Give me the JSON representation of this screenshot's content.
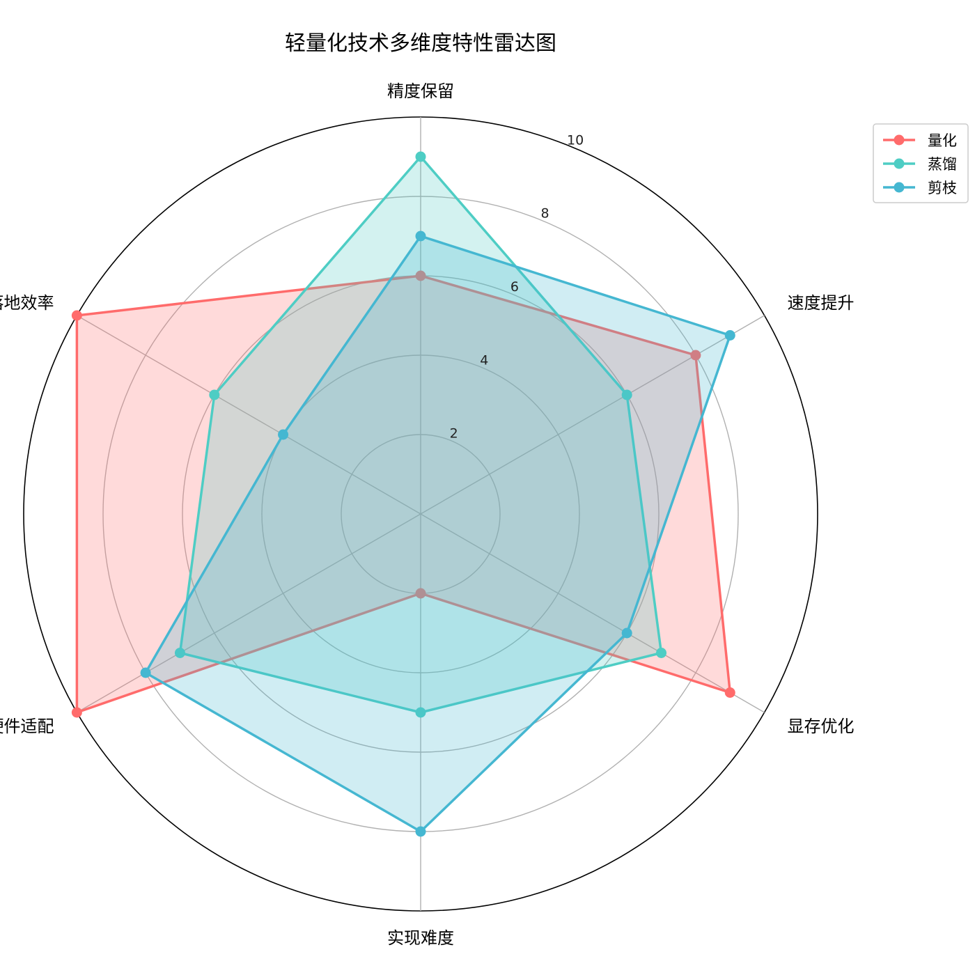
{
  "chart_data": {
    "type": "radar",
    "title": "轻量化技术多维度特性雷达图",
    "axes": [
      "精度保留",
      "速度提升",
      "显存优化",
      "实现难度",
      "硬件适配",
      "落地效率"
    ],
    "rlim": [
      0,
      10
    ],
    "rticks": [
      2,
      4,
      6,
      8,
      10
    ],
    "rtick_labels": [
      "2",
      "4",
      "6",
      "8",
      "10"
    ],
    "grid": true,
    "legend_position": "outside top-right",
    "series": [
      {
        "name": "量化",
        "color": "#FF6B6B",
        "values": [
          6,
          8,
          9,
          2,
          10,
          10
        ]
      },
      {
        "name": "蒸馏",
        "color": "#4ECDC4",
        "values": [
          9,
          6,
          7,
          5,
          7,
          6
        ]
      },
      {
        "name": "剪枝",
        "color": "#45B7D1",
        "values": [
          7,
          9,
          6,
          8,
          8,
          4
        ]
      }
    ]
  }
}
